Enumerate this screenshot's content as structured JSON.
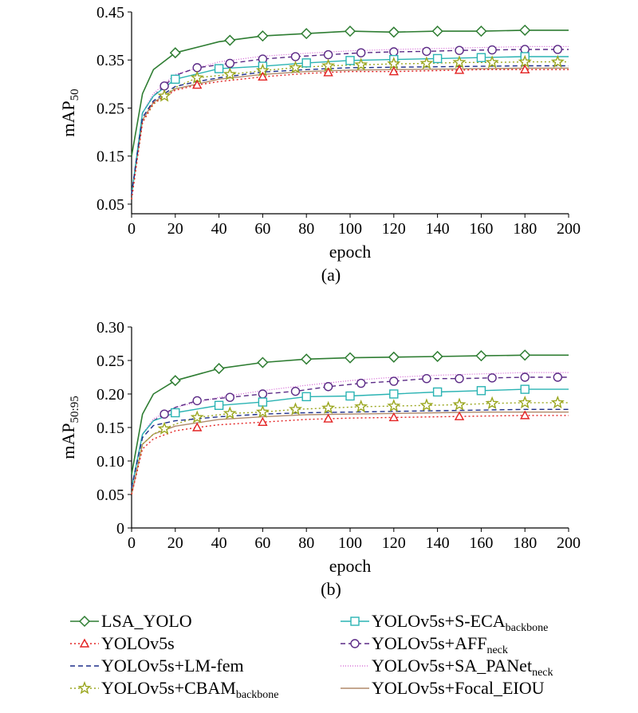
{
  "chart_data": [
    {
      "type": "line",
      "caption": "(a)",
      "xlabel": "epoch",
      "ylabel": {
        "main": "mAP",
        "sub": "50"
      },
      "xlim": [
        0,
        200
      ],
      "ylim": [
        0.03,
        0.45
      ],
      "xticks": [
        0,
        20,
        40,
        60,
        80,
        100,
        120,
        140,
        160,
        180,
        200
      ],
      "yticks": [
        0.05,
        0.15,
        0.25,
        0.35,
        0.45
      ],
      "ytick_labels": [
        "0.05",
        "0.15",
        "0.25",
        "0.35",
        "0.45"
      ],
      "grid": false,
      "series": [
        {
          "key": "lsa_yolo",
          "x": [
            0,
            5,
            10,
            20,
            40,
            60,
            80,
            100,
            120,
            140,
            160,
            180,
            200
          ],
          "y": [
            0.15,
            0.28,
            0.33,
            0.365,
            0.388,
            0.4,
            0.405,
            0.41,
            0.408,
            0.41,
            0.41,
            0.412,
            0.412
          ],
          "marker_x": [
            20,
            45,
            60,
            80,
            100,
            120,
            140,
            160,
            180
          ]
        },
        {
          "key": "yolov5s",
          "x": [
            0,
            5,
            10,
            20,
            30,
            40,
            60,
            80,
            100,
            120,
            140,
            160,
            180,
            200
          ],
          "y": [
            0.06,
            0.22,
            0.26,
            0.287,
            0.298,
            0.305,
            0.315,
            0.322,
            0.326,
            0.326,
            0.328,
            0.33,
            0.33,
            0.33
          ],
          "marker_x": [
            30,
            60,
            90,
            120,
            150,
            180
          ]
        },
        {
          "key": "lm_fem",
          "x": [
            0,
            5,
            10,
            20,
            30,
            40,
            60,
            80,
            100,
            120,
            140,
            160,
            180,
            200
          ],
          "y": [
            0.07,
            0.23,
            0.265,
            0.295,
            0.305,
            0.313,
            0.325,
            0.33,
            0.334,
            0.335,
            0.336,
            0.337,
            0.338,
            0.338
          ],
          "marker_x": []
        },
        {
          "key": "cbam",
          "x": [
            0,
            5,
            10,
            15,
            20,
            30,
            45,
            60,
            75,
            90,
            105,
            120,
            135,
            150,
            165,
            180,
            200
          ],
          "y": [
            0.06,
            0.22,
            0.258,
            0.275,
            0.293,
            0.313,
            0.32,
            0.328,
            0.334,
            0.338,
            0.34,
            0.342,
            0.343,
            0.345,
            0.345,
            0.346,
            0.346
          ],
          "marker_x": [
            15,
            30,
            45,
            60,
            75,
            90,
            105,
            120,
            135,
            150,
            165,
            180,
            195
          ]
        },
        {
          "key": "s_eca",
          "x": [
            0,
            5,
            10,
            20,
            40,
            60,
            80,
            100,
            120,
            140,
            160,
            180,
            200
          ],
          "y": [
            0.07,
            0.24,
            0.275,
            0.31,
            0.332,
            0.337,
            0.344,
            0.349,
            0.351,
            0.353,
            0.355,
            0.357,
            0.357
          ],
          "marker_x": [
            20,
            40,
            60,
            80,
            100,
            120,
            140,
            160,
            180
          ]
        },
        {
          "key": "aff",
          "x": [
            0,
            5,
            10,
            15,
            20,
            30,
            45,
            60,
            75,
            90,
            105,
            120,
            135,
            150,
            165,
            180,
            200
          ],
          "y": [
            0.07,
            0.24,
            0.275,
            0.296,
            0.318,
            0.334,
            0.343,
            0.352,
            0.357,
            0.361,
            0.365,
            0.367,
            0.368,
            0.37,
            0.371,
            0.372,
            0.372
          ],
          "marker_x": [
            15,
            30,
            45,
            60,
            75,
            90,
            105,
            120,
            135,
            150,
            165,
            180,
            195
          ]
        },
        {
          "key": "sa_panet",
          "x": [
            0,
            5,
            10,
            20,
            40,
            60,
            80,
            100,
            120,
            140,
            160,
            180,
            200
          ],
          "y": [
            0.07,
            0.24,
            0.28,
            0.32,
            0.346,
            0.358,
            0.364,
            0.369,
            0.372,
            0.374,
            0.376,
            0.378,
            0.378
          ],
          "marker_x": []
        },
        {
          "key": "focal_eiou",
          "x": [
            0,
            5,
            10,
            20,
            40,
            60,
            80,
            100,
            120,
            140,
            160,
            180,
            200
          ],
          "y": [
            0.07,
            0.225,
            0.262,
            0.29,
            0.31,
            0.32,
            0.326,
            0.329,
            0.33,
            0.331,
            0.332,
            0.333,
            0.333
          ],
          "marker_x": []
        }
      ]
    },
    {
      "type": "line",
      "caption": "(b)",
      "xlabel": "epoch",
      "ylabel": {
        "main": "mAP",
        "sub": "50:95"
      },
      "xlim": [
        0,
        200
      ],
      "ylim": [
        0,
        0.3
      ],
      "xticks": [
        0,
        20,
        40,
        60,
        80,
        100,
        120,
        140,
        160,
        180,
        200
      ],
      "yticks": [
        0,
        0.05,
        0.1,
        0.15,
        0.2,
        0.25,
        0.3
      ],
      "ytick_labels": [
        "0",
        "0.05",
        "0.10",
        "0.15",
        "0.20",
        "0.25",
        "0.30"
      ],
      "grid": false,
      "series": [
        {
          "key": "lsa_yolo",
          "x": [
            0,
            5,
            10,
            20,
            40,
            60,
            80,
            100,
            120,
            140,
            160,
            180,
            200
          ],
          "y": [
            0.08,
            0.17,
            0.2,
            0.22,
            0.238,
            0.247,
            0.252,
            0.254,
            0.255,
            0.256,
            0.257,
            0.258,
            0.258
          ],
          "marker_x": [
            20,
            40,
            60,
            80,
            100,
            120,
            140,
            160,
            180
          ]
        },
        {
          "key": "yolov5s",
          "x": [
            0,
            5,
            10,
            20,
            30,
            40,
            60,
            80,
            100,
            120,
            140,
            160,
            180,
            200
          ],
          "y": [
            0.05,
            0.118,
            0.133,
            0.145,
            0.15,
            0.154,
            0.158,
            0.162,
            0.164,
            0.165,
            0.166,
            0.167,
            0.168,
            0.168
          ],
          "marker_x": [
            30,
            60,
            90,
            120,
            150,
            180
          ]
        },
        {
          "key": "lm_fem",
          "x": [
            0,
            5,
            10,
            20,
            40,
            60,
            80,
            100,
            120,
            140,
            160,
            180,
            200
          ],
          "y": [
            0.06,
            0.135,
            0.153,
            0.16,
            0.166,
            0.17,
            0.172,
            0.173,
            0.174,
            0.175,
            0.176,
            0.177,
            0.177
          ],
          "marker_x": []
        },
        {
          "key": "cbam",
          "x": [
            0,
            5,
            10,
            15,
            20,
            30,
            45,
            60,
            75,
            90,
            105,
            120,
            135,
            150,
            165,
            180,
            200
          ],
          "y": [
            0.05,
            0.125,
            0.14,
            0.148,
            0.155,
            0.165,
            0.171,
            0.173,
            0.177,
            0.179,
            0.181,
            0.182,
            0.183,
            0.184,
            0.186,
            0.187,
            0.187
          ],
          "marker_x": [
            15,
            30,
            45,
            60,
            75,
            90,
            105,
            120,
            135,
            150,
            165,
            180,
            195
          ]
        },
        {
          "key": "s_eca",
          "x": [
            0,
            5,
            10,
            20,
            40,
            60,
            80,
            100,
            120,
            140,
            160,
            180,
            200
          ],
          "y": [
            0.06,
            0.14,
            0.16,
            0.172,
            0.183,
            0.188,
            0.196,
            0.197,
            0.2,
            0.203,
            0.205,
            0.207,
            0.207
          ],
          "marker_x": [
            20,
            40,
            60,
            80,
            100,
            120,
            140,
            160,
            180
          ]
        },
        {
          "key": "aff",
          "x": [
            0,
            5,
            10,
            15,
            20,
            30,
            45,
            60,
            75,
            90,
            105,
            120,
            135,
            150,
            165,
            180,
            200
          ],
          "y": [
            0.06,
            0.14,
            0.16,
            0.17,
            0.18,
            0.19,
            0.195,
            0.2,
            0.204,
            0.211,
            0.216,
            0.219,
            0.223,
            0.223,
            0.224,
            0.225,
            0.225
          ],
          "marker_x": [
            15,
            30,
            45,
            60,
            75,
            90,
            105,
            120,
            135,
            150,
            165,
            180,
            195
          ]
        },
        {
          "key": "sa_panet",
          "x": [
            0,
            5,
            10,
            20,
            40,
            60,
            80,
            100,
            120,
            140,
            160,
            180,
            200
          ],
          "y": [
            0.06,
            0.14,
            0.163,
            0.18,
            0.195,
            0.205,
            0.213,
            0.22,
            0.225,
            0.228,
            0.23,
            0.232,
            0.232
          ],
          "marker_x": []
        },
        {
          "key": "focal_eiou",
          "x": [
            0,
            5,
            10,
            20,
            40,
            60,
            80,
            100,
            120,
            140,
            160,
            180,
            200
          ],
          "y": [
            0.05,
            0.125,
            0.14,
            0.152,
            0.162,
            0.166,
            0.169,
            0.17,
            0.171,
            0.172,
            0.173,
            0.173,
            0.173
          ],
          "marker_x": []
        }
      ]
    }
  ],
  "legend": {
    "placement": "bottom, two columns",
    "entries": [
      {
        "key": "lsa_yolo",
        "name": "LSA_YOLO",
        "sub": "",
        "color": "#2e7d32",
        "dash": "",
        "marker": "diamond",
        "width": 1.6
      },
      {
        "key": "yolov5s",
        "name": "YOLOv5s",
        "sub": "",
        "color": "#e32222",
        "dash": "2,3",
        "marker": "triangle",
        "width": 1.4
      },
      {
        "key": "lm_fem",
        "name": "YOLOv5s+LM-fem",
        "sub": "",
        "color": "#1e2f8a",
        "dash": "6,4",
        "marker": "none",
        "width": 1.4
      },
      {
        "key": "cbam",
        "name": "YOLOv5s+CBAM",
        "sub": "backbone",
        "color": "#9aa61e",
        "dash": "2,3",
        "marker": "star",
        "width": 1.4
      },
      {
        "key": "s_eca",
        "name": "YOLOv5s+S-ECA",
        "sub": "backbone",
        "color": "#2ab3b3",
        "dash": "",
        "marker": "square",
        "width": 1.4
      },
      {
        "key": "aff",
        "name": "YOLOv5s+AFF",
        "sub": "neck",
        "color": "#5b2a86",
        "dash": "6,4",
        "marker": "circle",
        "width": 1.4
      },
      {
        "key": "sa_panet",
        "name": "YOLOv5s+SA_PANet",
        "sub": "neck",
        "color": "#d15bd1",
        "dash": "1,2",
        "marker": "none",
        "width": 1.2
      },
      {
        "key": "focal_eiou",
        "name": "YOLOv5s+Focal_EIOU",
        "sub": "",
        "color": "#b08a6a",
        "dash": "",
        "marker": "none",
        "width": 1.4
      }
    ]
  }
}
